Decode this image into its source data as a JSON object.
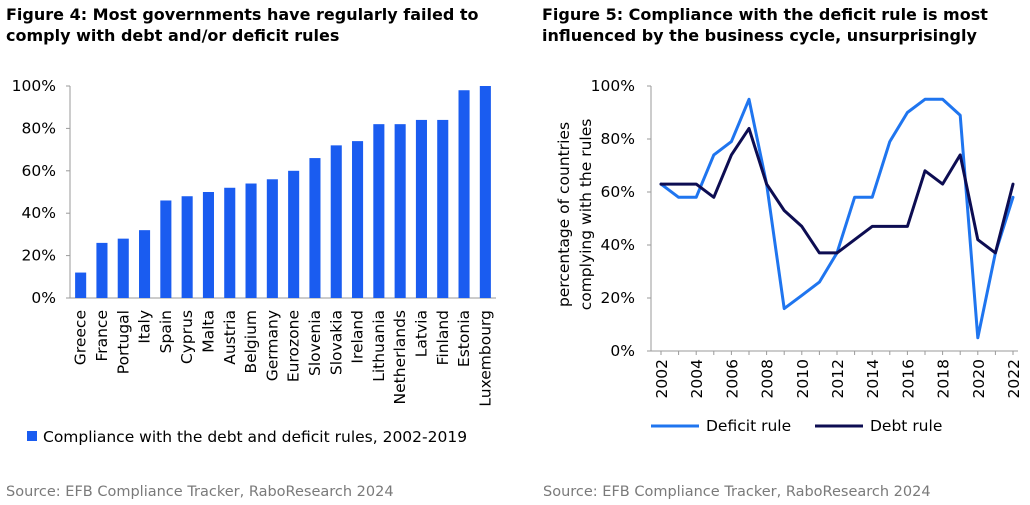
{
  "figure4": {
    "title": "Figure 4: Most governments have regularly failed to comply with debt and/or deficit rules",
    "source": "Source: EFB Compliance Tracker, RaboResearch 2024"
  },
  "figure5": {
    "title": "Figure 5: Compliance with the deficit rule is most influenced by the business cycle, unsurprisingly",
    "source": "Source: EFB Compliance Tracker, RaboResearch 2024"
  },
  "colors": {
    "bar": "#1a5cf0",
    "deficit": "#1f75ef",
    "debt": "#0d0d52",
    "axis": "#9a9a9a"
  },
  "chart_data": [
    {
      "type": "bar",
      "categories": [
        "Greece",
        "France",
        "Portugal",
        "Italy",
        "Spain",
        "Cyprus",
        "Malta",
        "Austria",
        "Belgium",
        "Germany",
        "Eurozone",
        "Slovenia",
        "Slovakia",
        "Ireland",
        "Lithuania",
        "Netherlands",
        "Latvia",
        "Finland",
        "Estonia",
        "Luxembourg"
      ],
      "series": [
        {
          "name": "Compliance with the debt and deficit rules, 2002-2019",
          "values": [
            12,
            26,
            28,
            32,
            46,
            48,
            50,
            52,
            54,
            56,
            60,
            66,
            72,
            74,
            82,
            82,
            84,
            84,
            98,
            100
          ]
        }
      ],
      "ylim": [
        0,
        100
      ],
      "yticks": [
        "0%",
        "20%",
        "40%",
        "60%",
        "80%",
        "100%"
      ],
      "legend": "bottom",
      "grid": false
    },
    {
      "type": "line",
      "x": [
        2002,
        2003,
        2004,
        2005,
        2006,
        2007,
        2008,
        2009,
        2010,
        2011,
        2012,
        2013,
        2014,
        2015,
        2016,
        2017,
        2018,
        2019,
        2020,
        2021,
        2022
      ],
      "series": [
        {
          "name": "Deficit rule",
          "values": [
            63,
            58,
            58,
            74,
            79,
            95,
            63,
            16,
            21,
            26,
            37,
            58,
            58,
            79,
            90,
            95,
            95,
            89,
            5,
            37,
            58
          ]
        },
        {
          "name": "Debt rule",
          "values": [
            63,
            63,
            63,
            58,
            74,
            84,
            63,
            53,
            47,
            37,
            37,
            42,
            47,
            47,
            47,
            68,
            63,
            74,
            42,
            37,
            63
          ]
        }
      ],
      "ylabel": "percentage of countries complying with the rules",
      "ylim": [
        0,
        100
      ],
      "yticks": [
        "0%",
        "20%",
        "40%",
        "60%",
        "80%",
        "100%"
      ],
      "xticks": [
        "2002",
        "2004",
        "2006",
        "2008",
        "2010",
        "2012",
        "2014",
        "2016",
        "2018",
        "2020",
        "2022"
      ],
      "legend": "bottom",
      "grid": false
    }
  ]
}
